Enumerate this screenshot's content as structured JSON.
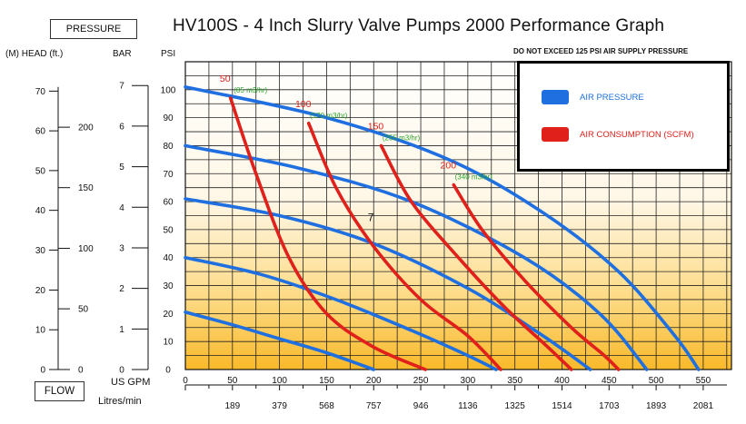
{
  "pressure_label": "PRESSURE",
  "flow_label": "FLOW",
  "title": "HV100S - 4 Inch Slurry Valve Pumps 2000 Performance Graph",
  "warning": "DO NOT EXCEED 125 PSI AIR SUPPLY PRESSURE",
  "axis_headers": {
    "head": "(M) HEAD (ft.)",
    "bar": "BAR",
    "psi": "PSI"
  },
  "flow_units": {
    "gpm": "US GPM",
    "lpm": "Litres/min"
  },
  "legend": {
    "air_pressure": {
      "label": "AIR PRESSURE",
      "color": "#1f6fe0"
    },
    "air_consumption": {
      "label": "AIR CONSUMPTION  (SCFM)",
      "color": "#e0201b"
    }
  },
  "chart_data": {
    "type": "line",
    "title": "HV100S - 4 Inch Slurry Valve Pumps 2000 Performance Graph",
    "xlabel": "US GPM",
    "ylabel": "PSI",
    "xlim": [
      0,
      580
    ],
    "ylim": [
      0,
      110
    ],
    "x_ticks": [
      "0",
      "50",
      "100",
      "150",
      "200",
      "250",
      "300",
      "350",
      "400",
      "450",
      "500",
      "550"
    ],
    "x_ticks_lpm": [
      {
        "gpm": 50,
        "label": "189"
      },
      {
        "gpm": 100,
        "label": "379"
      },
      {
        "gpm": 150,
        "label": "568"
      },
      {
        "gpm": 200,
        "label": "757"
      },
      {
        "gpm": 250,
        "label": "946"
      },
      {
        "gpm": 300,
        "label": "1136"
      },
      {
        "gpm": 350,
        "label": "1325"
      },
      {
        "gpm": 400,
        "label": "1514"
      },
      {
        "gpm": 450,
        "label": "1703"
      },
      {
        "gpm": 500,
        "label": "1893"
      },
      {
        "gpm": 550,
        "label": "2081"
      }
    ],
    "psi_ticks": [
      "0",
      "10",
      "20",
      "30",
      "40",
      "50",
      "60",
      "70",
      "80",
      "90",
      "100"
    ],
    "bar_ticks": [
      {
        "psi": 0,
        "label": "0"
      },
      {
        "psi": 14.5,
        "label": "1"
      },
      {
        "psi": 29,
        "label": "2"
      },
      {
        "psi": 43.5,
        "label": "3"
      },
      {
        "psi": 58,
        "label": "4"
      },
      {
        "psi": 72.5,
        "label": "5"
      },
      {
        "psi": 87,
        "label": "6"
      },
      {
        "psi": 101.5,
        "label": "7"
      }
    ],
    "head_m_ticks": [
      {
        "psi": 0,
        "label": "0"
      },
      {
        "psi": 14.2,
        "label": "10"
      },
      {
        "psi": 28.4,
        "label": "20"
      },
      {
        "psi": 42.7,
        "label": "30"
      },
      {
        "psi": 56.9,
        "label": "40"
      },
      {
        "psi": 71.1,
        "label": "50"
      },
      {
        "psi": 85.3,
        "label": "60"
      },
      {
        "psi": 99.5,
        "label": "70"
      }
    ],
    "head_ft_ticks": [
      {
        "psi": 0,
        "label": "0"
      },
      {
        "psi": 21.7,
        "label": "50"
      },
      {
        "psi": 43.3,
        "label": "100"
      },
      {
        "psi": 65,
        "label": "150"
      },
      {
        "psi": 86.6,
        "label": "200"
      }
    ],
    "air_pressure_series": [
      {
        "name": "20 psi",
        "points": [
          [
            0,
            20.5
          ],
          [
            50,
            16
          ],
          [
            100,
            11
          ],
          [
            150,
            6
          ],
          [
            200,
            0
          ]
        ]
      },
      {
        "name": "40 psi",
        "points": [
          [
            0,
            40
          ],
          [
            80,
            34
          ],
          [
            160,
            25
          ],
          [
            240,
            14
          ],
          [
            300,
            5
          ],
          [
            330,
            0
          ]
        ]
      },
      {
        "name": "60 psi",
        "points": [
          [
            0,
            61
          ],
          [
            100,
            55
          ],
          [
            200,
            45
          ],
          [
            300,
            29
          ],
          [
            380,
            12
          ],
          [
            430,
            0
          ]
        ]
      },
      {
        "name": "80 psi",
        "points": [
          [
            0,
            80
          ],
          [
            120,
            72
          ],
          [
            240,
            60
          ],
          [
            360,
            40
          ],
          [
            440,
            20
          ],
          [
            490,
            0
          ]
        ]
      },
      {
        "name": "100 psi",
        "points": [
          [
            0,
            101
          ],
          [
            150,
            90
          ],
          [
            280,
            75
          ],
          [
            380,
            56
          ],
          [
            460,
            35
          ],
          [
            520,
            12
          ],
          [
            545,
            0
          ]
        ]
      }
    ],
    "air_consumption_series": [
      {
        "name": "50",
        "flow_label": "(85 m3/hr)",
        "points": [
          [
            48,
            97
          ],
          [
            75,
            70
          ],
          [
            110,
            40
          ],
          [
            150,
            20
          ],
          [
            200,
            8
          ],
          [
            255,
            0
          ]
        ]
      },
      {
        "name": "100",
        "flow_label": "(170 m3/hr)",
        "points": [
          [
            131,
            88
          ],
          [
            160,
            65
          ],
          [
            200,
            44
          ],
          [
            250,
            25
          ],
          [
            300,
            12
          ],
          [
            335,
            0
          ]
        ]
      },
      {
        "name": "150",
        "flow_label": "(255 m3/hr)",
        "points": [
          [
            208,
            80
          ],
          [
            240,
            60
          ],
          [
            290,
            40
          ],
          [
            340,
            22
          ],
          [
            385,
            8
          ],
          [
            410,
            0
          ]
        ]
      },
      {
        "name": "200",
        "flow_label": "(340 m3/hr)",
        "points": [
          [
            285,
            66
          ],
          [
            315,
            50
          ],
          [
            360,
            32
          ],
          [
            410,
            15
          ],
          [
            445,
            5
          ],
          [
            460,
            0
          ]
        ]
      }
    ],
    "annotations": [
      {
        "text": "7",
        "x": 197,
        "y": 53
      }
    ]
  }
}
